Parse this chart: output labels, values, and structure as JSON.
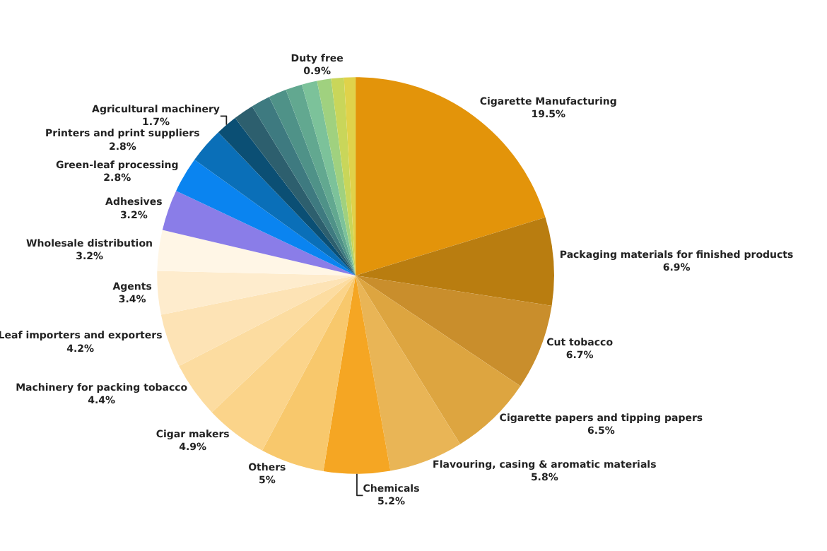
{
  "chart_data": {
    "type": "pie",
    "categories": [
      "Cigarette Manufacturing",
      "Packaging materials for finished products",
      "Cut tobacco",
      "Cigarette papers and tipping papers",
      "Flavouring, casing & aromatic materials",
      "Chemicals",
      "Others",
      "Cigar makers",
      "Machinery for packing tobacco",
      "Leaf importers and exporters",
      "Agents",
      "Wholesale distribution",
      "Adhesives",
      "Green-leaf processing",
      "Printers and print suppliers",
      "Agricultural machinery",
      null,
      null,
      null,
      null,
      null,
      null,
      null,
      "Duty free"
    ],
    "values": [
      19.5,
      6.9,
      6.7,
      6.5,
      5.8,
      5.2,
      5,
      4.9,
      4.4,
      4.2,
      3.4,
      3.2,
      3.2,
      2.8,
      2.8,
      1.7,
      1.6,
      1.5,
      1.4,
      1.3,
      1.2,
      1.1,
      1.0,
      0.9
    ],
    "value_labels": [
      "19.5%",
      "6.9%",
      "6.7%",
      "6.5%",
      "5.8%",
      "5.2%",
      "5%",
      "4.9%",
      "4.4%",
      "4.2%",
      "3.4%",
      "3.2%",
      "3.2%",
      "2.8%",
      "2.8%",
      "1.7%",
      null,
      null,
      null,
      null,
      null,
      null,
      null,
      "0.9%"
    ],
    "colors": [
      "#e3940a",
      "#b97d10",
      "#c98e2c",
      "#dda540",
      "#e9b556",
      "#f5a623",
      "#f8c86c",
      "#fbd48a",
      "#fcdca0",
      "#fde3b5",
      "#feeccd",
      "#fff6e6",
      "#8a7de8",
      "#0a84f0",
      "#0a6fb8",
      "#0b4f74",
      "#2d5f6e",
      "#3e7a80",
      "#4f9288",
      "#62a890",
      "#7cc29a",
      "#a0d17f",
      "#c9d65a",
      "#e0d24a"
    ]
  }
}
